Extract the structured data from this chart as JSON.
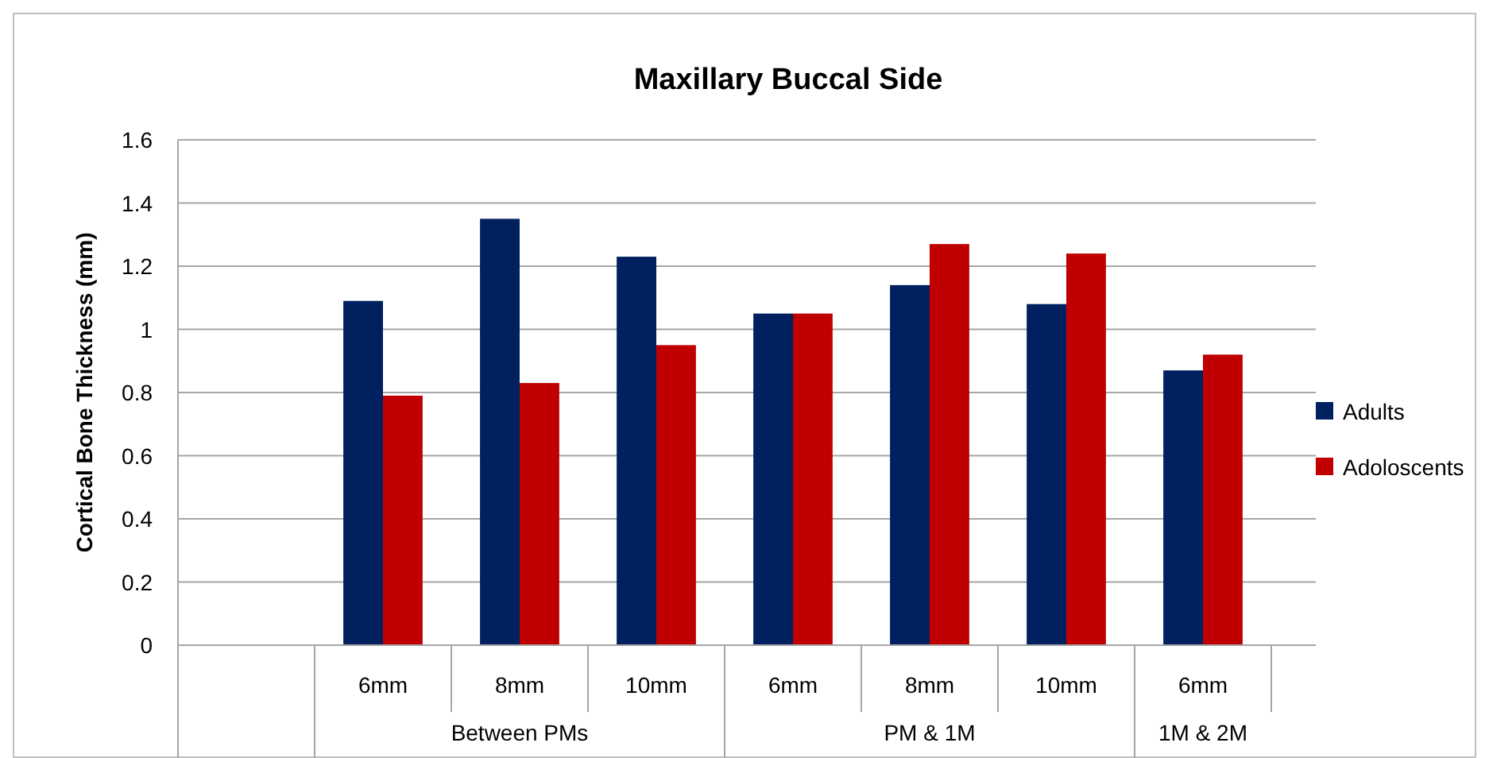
{
  "chart_data": {
    "type": "bar",
    "title": "Maxillary Buccal Side",
    "ylabel": "Cortical Bone Thickness (mm)",
    "categories": [
      null,
      "6mm",
      "8mm",
      "10mm",
      "6mm",
      "8mm",
      "10mm",
      "6mm"
    ],
    "series": [
      {
        "name": "Adults",
        "color": "#002060",
        "values": [
          null,
          1.09,
          1.35,
          1.23,
          1.05,
          1.14,
          1.08,
          0.87
        ]
      },
      {
        "name": "Adoloscents",
        "color": "#c00000",
        "values": [
          null,
          0.79,
          0.83,
          0.95,
          1.05,
          1.27,
          1.24,
          0.92
        ]
      }
    ],
    "ylim": [
      0,
      1.6
    ],
    "yticks": [
      0,
      0.2,
      0.4,
      0.6,
      0.8,
      1,
      1.2,
      1.4,
      1.6
    ],
    "grid": "y",
    "legend": "right",
    "annotations": [
      "Between PMs",
      "PM & 1M",
      "1M & 2M"
    ]
  }
}
